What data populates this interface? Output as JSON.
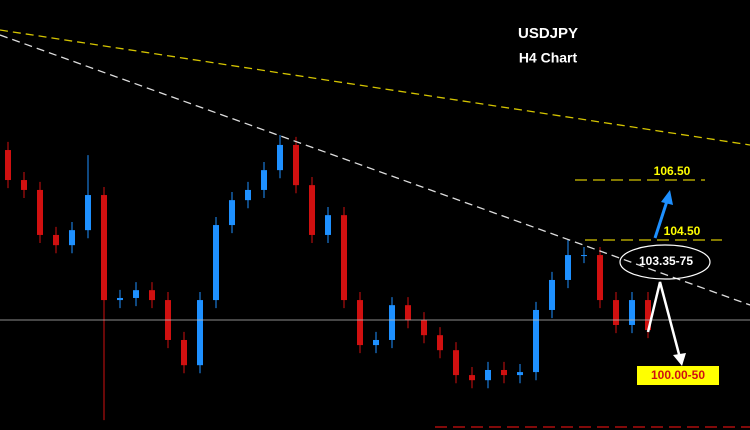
{
  "chart_data": {
    "type": "candlestick",
    "title": "USDJPY",
    "subtitle": "H4 Chart",
    "annotations": [
      "106.50",
      "104.50",
      "103.35-75",
      "100.00-50"
    ],
    "up_color": "#1e90ff",
    "down_color": "#d01010",
    "ylim": [
      98.17,
      112.5
    ],
    "open": [
      107.5,
      106.5,
      106.17,
      104.67,
      104.33,
      104.83,
      106.0,
      102.5,
      102.57,
      102.83,
      102.5,
      101.17,
      100.33,
      102.5,
      105.0,
      105.83,
      106.17,
      106.83,
      107.67,
      106.33,
      104.67,
      105.33,
      102.5,
      101.0,
      101.17,
      102.33,
      101.83,
      101.33,
      100.83,
      100.0,
      99.83,
      100.17,
      100.0,
      100.1,
      102.17,
      103.17,
      104.0,
      104.0,
      102.5,
      101.67,
      102.5
    ],
    "high": [
      107.77,
      106.77,
      106.44,
      104.94,
      105.1,
      107.33,
      106.27,
      102.84,
      103.1,
      103.1,
      102.77,
      101.44,
      102.77,
      105.27,
      106.1,
      106.44,
      107.1,
      108.0,
      107.94,
      106.6,
      105.6,
      105.6,
      102.77,
      101.44,
      102.6,
      102.6,
      102.1,
      101.6,
      101.1,
      100.27,
      100.44,
      100.44,
      100.37,
      102.44,
      103.44,
      104.5,
      104.27,
      104.27,
      102.77,
      102.77,
      102.77
    ],
    "low": [
      106.23,
      105.9,
      104.4,
      104.06,
      104.06,
      104.56,
      98.5,
      102.23,
      102.3,
      102.23,
      100.9,
      100.06,
      100.06,
      102.23,
      104.73,
      105.56,
      105.9,
      106.56,
      106.06,
      104.4,
      104.4,
      102.23,
      100.73,
      100.73,
      100.9,
      101.56,
      101.06,
      100.56,
      99.73,
      99.56,
      99.56,
      99.73,
      99.73,
      99.83,
      101.9,
      102.9,
      103.73,
      102.23,
      101.4,
      101.4,
      101.23
    ],
    "close": [
      106.5,
      106.17,
      104.67,
      104.33,
      104.83,
      106.0,
      102.5,
      102.57,
      102.83,
      102.5,
      101.17,
      100.33,
      102.5,
      105.0,
      105.83,
      106.17,
      106.83,
      107.67,
      106.33,
      104.67,
      105.33,
      102.5,
      101.0,
      101.17,
      102.33,
      101.83,
      101.33,
      100.83,
      100.0,
      99.83,
      100.17,
      100.0,
      100.1,
      102.17,
      103.17,
      104.0,
      104.0,
      102.5,
      101.67,
      102.5,
      101.5
    ]
  }
}
